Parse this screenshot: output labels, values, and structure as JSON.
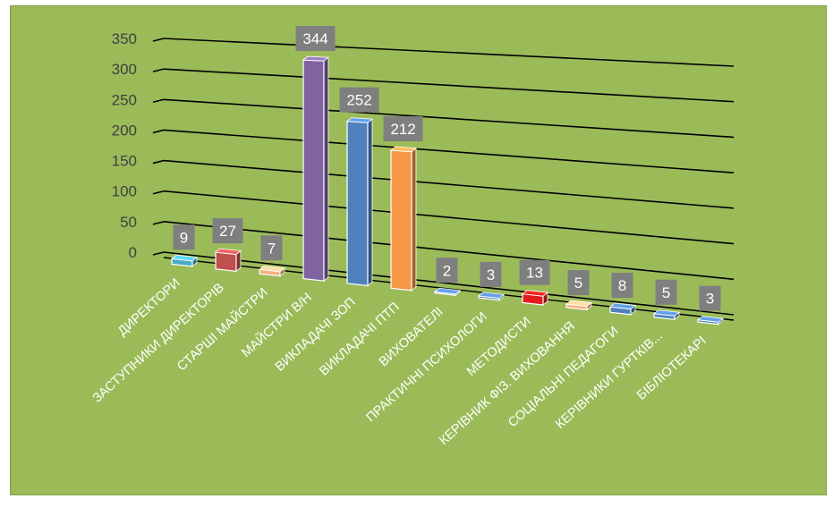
{
  "chart_data": {
    "type": "bar",
    "title": "",
    "xlabel": "",
    "ylabel": "",
    "ylim": [
      0,
      350
    ],
    "yticks": [
      0,
      50,
      100,
      150,
      200,
      250,
      300,
      350
    ],
    "grid": true,
    "legend": "none",
    "categories": [
      "ДИРЕКТОРИ",
      "ЗАСТУПНИКИ ДИРЕКТОРІВ",
      "СТАРШІ МАЙСТРИ",
      "МАЙСТРИ В/Н",
      "ВИКЛАДАЧІ ЗОП",
      "ВИКЛАДАЧІ ПТП",
      "ВИХОВАТЕЛІ",
      "ПРАКТИЧНІ ПСИХОЛОГИ",
      "МЕТОДИСТИ",
      "КЕРІВНИК ФІЗ. ВИХОВАННЯ",
      "СОЦІАЛЬНІ ПЕДАГОГИ",
      "КЕРІВНИКИ ГУРТКІВ...",
      "БІБЛІОТЕКАРІ"
    ],
    "values": [
      9,
      27,
      7,
      344,
      252,
      212,
      2,
      3,
      13,
      5,
      8,
      5,
      3
    ],
    "value_labels": [
      "9",
      "27",
      "7",
      "344",
      "252",
      "212",
      "2",
      "3",
      "13",
      "5",
      "8",
      "5",
      "3"
    ],
    "bar_colors": [
      "#4bacc6",
      "#c0504d",
      "#f4b183",
      "#8064a2",
      "#4f81bd",
      "#f79646",
      "#4f81bd",
      "#4f81bd",
      "#e41a1c",
      "#f4b183",
      "#4f81bd",
      "#4f81bd",
      "#4f81bd"
    ]
  },
  "colors": {
    "background": "#9bbb59",
    "gridline": "#000000",
    "label_box": "#7f7f7f",
    "label_text": "#ffffff",
    "tick_text": "#404040"
  }
}
